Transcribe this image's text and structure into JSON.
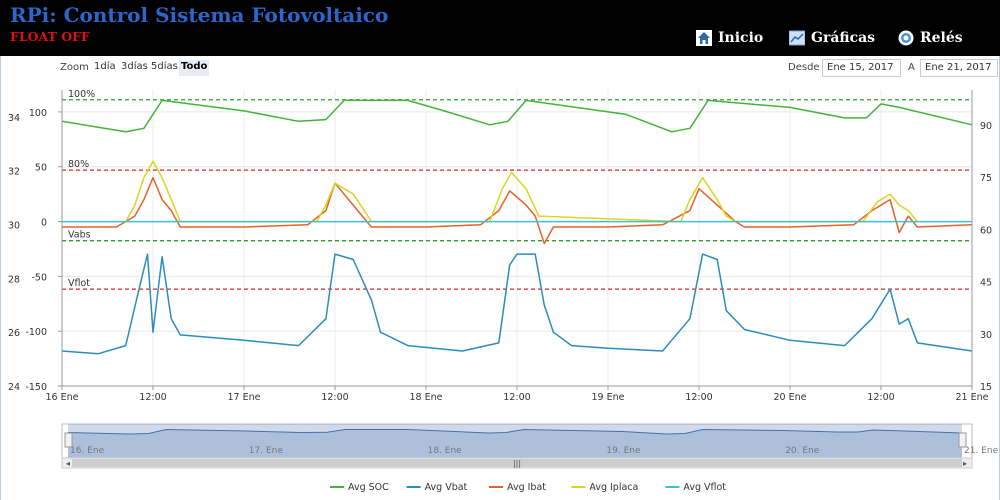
{
  "header": {
    "title": "RPi: Control Sistema Fotovoltaico",
    "status": "FLOAT OFF",
    "nav": [
      {
        "label": "Inicio",
        "icon": "home-icon"
      },
      {
        "label": "Gráficas",
        "icon": "chart-icon"
      },
      {
        "label": "Relés",
        "icon": "relay-icon"
      }
    ]
  },
  "toolbar": {
    "zoom_label": "Zoom",
    "zoom_buttons": [
      "1día",
      "3días",
      "5días",
      "Todo"
    ],
    "zoom_active": "Todo",
    "from_label": "Desde",
    "from_value": "Ene 15, 2017",
    "to_label": "A",
    "to_value": "Ene 21, 2017"
  },
  "chart_data": {
    "type": "line",
    "x_domain": [
      0,
      5
    ],
    "x_ticks": [
      {
        "x": 0,
        "label": "16 Ene"
      },
      {
        "x": 0.5,
        "label": "12:00"
      },
      {
        "x": 1,
        "label": "17 Ene"
      },
      {
        "x": 1.5,
        "label": "12:00"
      },
      {
        "x": 2,
        "label": "18 Ene"
      },
      {
        "x": 2.5,
        "label": "12:00"
      },
      {
        "x": 3,
        "label": "19 Ene"
      },
      {
        "x": 3.5,
        "label": "12:00"
      },
      {
        "x": 4,
        "label": "20 Ene"
      },
      {
        "x": 4.5,
        "label": "12:00"
      },
      {
        "x": 5,
        "label": "21 Ene"
      }
    ],
    "y_left_voltage": {
      "ticks": [
        24,
        26,
        28,
        30,
        32,
        34
      ],
      "range": [
        24,
        35
      ]
    },
    "y_left_current": {
      "ticks": [
        -150,
        -100,
        -50,
        0,
        50,
        100
      ],
      "range": [
        -150,
        120
      ]
    },
    "y_right_soc": {
      "ticks": [
        15,
        30,
        45,
        60,
        75,
        90
      ],
      "range": [
        15,
        100
      ]
    },
    "plot_lines": [
      {
        "label": "100%",
        "scale": "soc",
        "value": 97.2,
        "color": "#2ca02c"
      },
      {
        "label": "80%",
        "scale": "soc",
        "value": 77,
        "color": "#d62728"
      },
      {
        "label": "Vabs",
        "scale": "voltage",
        "value": 29.4,
        "color": "#2ca02c"
      },
      {
        "label": "Vflot",
        "scale": "voltage",
        "value": 27.6,
        "color": "#d62728"
      }
    ],
    "series": [
      {
        "name": "Avg SOC",
        "color": "#44b33a",
        "scale": "soc",
        "points": [
          [
            0,
            91
          ],
          [
            0.35,
            88
          ],
          [
            0.45,
            89
          ],
          [
            0.55,
            97
          ],
          [
            1.0,
            94
          ],
          [
            1.3,
            91
          ],
          [
            1.45,
            91.5
          ],
          [
            1.55,
            97
          ],
          [
            1.9,
            97
          ],
          [
            2.1,
            94
          ],
          [
            2.35,
            90
          ],
          [
            2.45,
            91
          ],
          [
            2.55,
            97
          ],
          [
            3.1,
            93
          ],
          [
            3.35,
            88
          ],
          [
            3.45,
            89
          ],
          [
            3.55,
            97
          ],
          [
            4.0,
            95
          ],
          [
            4.3,
            92
          ],
          [
            4.42,
            92
          ],
          [
            4.5,
            96
          ],
          [
            4.6,
            95
          ],
          [
            5.0,
            90
          ]
        ]
      },
      {
        "name": "Avg Vbat",
        "color": "#2b8cbe",
        "scale": "voltage",
        "points": [
          [
            0,
            25.3
          ],
          [
            0.2,
            25.2
          ],
          [
            0.35,
            25.5
          ],
          [
            0.42,
            27.5
          ],
          [
            0.47,
            28.9
          ],
          [
            0.5,
            26
          ],
          [
            0.55,
            28.8
          ],
          [
            0.6,
            26.5
          ],
          [
            0.65,
            25.9
          ],
          [
            1.0,
            25.7
          ],
          [
            1.3,
            25.5
          ],
          [
            1.45,
            26.5
          ],
          [
            1.5,
            28.9
          ],
          [
            1.6,
            28.7
          ],
          [
            1.7,
            27.2
          ],
          [
            1.75,
            26
          ],
          [
            1.9,
            25.5
          ],
          [
            2.2,
            25.3
          ],
          [
            2.4,
            25.6
          ],
          [
            2.46,
            28.5
          ],
          [
            2.5,
            28.9
          ],
          [
            2.6,
            28.9
          ],
          [
            2.65,
            27
          ],
          [
            2.7,
            26
          ],
          [
            2.8,
            25.5
          ],
          [
            3.0,
            25.4
          ],
          [
            3.3,
            25.3
          ],
          [
            3.45,
            26.5
          ],
          [
            3.52,
            28.9
          ],
          [
            3.6,
            28.7
          ],
          [
            3.65,
            26.8
          ],
          [
            3.75,
            26.1
          ],
          [
            4.0,
            25.7
          ],
          [
            4.3,
            25.5
          ],
          [
            4.45,
            26.5
          ],
          [
            4.55,
            27.6
          ],
          [
            4.6,
            26.3
          ],
          [
            4.65,
            26.5
          ],
          [
            4.7,
            25.6
          ],
          [
            5.0,
            25.3
          ]
        ]
      },
      {
        "name": "Avg Ibat",
        "color": "#e5622a",
        "scale": "current",
        "points": [
          [
            0,
            -5
          ],
          [
            0.3,
            -5
          ],
          [
            0.4,
            5
          ],
          [
            0.45,
            20
          ],
          [
            0.5,
            40
          ],
          [
            0.55,
            20
          ],
          [
            0.6,
            10
          ],
          [
            0.65,
            -5
          ],
          [
            1.0,
            -5
          ],
          [
            1.35,
            -3
          ],
          [
            1.45,
            10
          ],
          [
            1.5,
            35
          ],
          [
            1.6,
            15
          ],
          [
            1.65,
            5
          ],
          [
            1.7,
            -5
          ],
          [
            2.0,
            -5
          ],
          [
            2.3,
            -3
          ],
          [
            2.4,
            10
          ],
          [
            2.46,
            28
          ],
          [
            2.55,
            15
          ],
          [
            2.6,
            5
          ],
          [
            2.65,
            -20
          ],
          [
            2.7,
            -5
          ],
          [
            3.0,
            -5
          ],
          [
            3.3,
            -3
          ],
          [
            3.45,
            10
          ],
          [
            3.5,
            30
          ],
          [
            3.6,
            15
          ],
          [
            3.7,
            0
          ],
          [
            3.75,
            -5
          ],
          [
            4.0,
            -5
          ],
          [
            4.35,
            -3
          ],
          [
            4.45,
            10
          ],
          [
            4.55,
            20
          ],
          [
            4.6,
            -10
          ],
          [
            4.65,
            5
          ],
          [
            4.7,
            -5
          ],
          [
            5.0,
            -3
          ]
        ]
      },
      {
        "name": "Avg Iplaca",
        "color": "#dcd41e",
        "scale": "current",
        "points": [
          [
            0.35,
            0
          ],
          [
            0.4,
            15
          ],
          [
            0.45,
            40
          ],
          [
            0.5,
            55
          ],
          [
            0.55,
            40
          ],
          [
            0.6,
            20
          ],
          [
            0.65,
            0
          ],
          [
            1.4,
            0
          ],
          [
            1.45,
            15
          ],
          [
            1.5,
            35
          ],
          [
            1.6,
            25
          ],
          [
            1.7,
            0
          ],
          [
            2.35,
            0
          ],
          [
            2.42,
            30
          ],
          [
            2.47,
            45
          ],
          [
            2.55,
            30
          ],
          [
            2.62,
            5
          ],
          [
            3.4,
            0
          ],
          [
            3.45,
            20
          ],
          [
            3.52,
            40
          ],
          [
            3.6,
            20
          ],
          [
            3.65,
            5
          ],
          [
            3.7,
            0
          ],
          [
            4.4,
            0
          ],
          [
            4.48,
            18
          ],
          [
            4.55,
            25
          ],
          [
            4.6,
            15
          ],
          [
            4.65,
            10
          ],
          [
            4.7,
            0
          ]
        ]
      },
      {
        "name": "Avg Vflot",
        "color": "#3bc2d6",
        "scale": "current",
        "points": [
          [
            0,
            0
          ],
          [
            5,
            0
          ]
        ]
      }
    ]
  },
  "navigator": {
    "labels": [
      "16. Ene",
      "17. Ene",
      "18. Ene",
      "19. Ene",
      "20. Ene",
      "21. Ene"
    ]
  }
}
